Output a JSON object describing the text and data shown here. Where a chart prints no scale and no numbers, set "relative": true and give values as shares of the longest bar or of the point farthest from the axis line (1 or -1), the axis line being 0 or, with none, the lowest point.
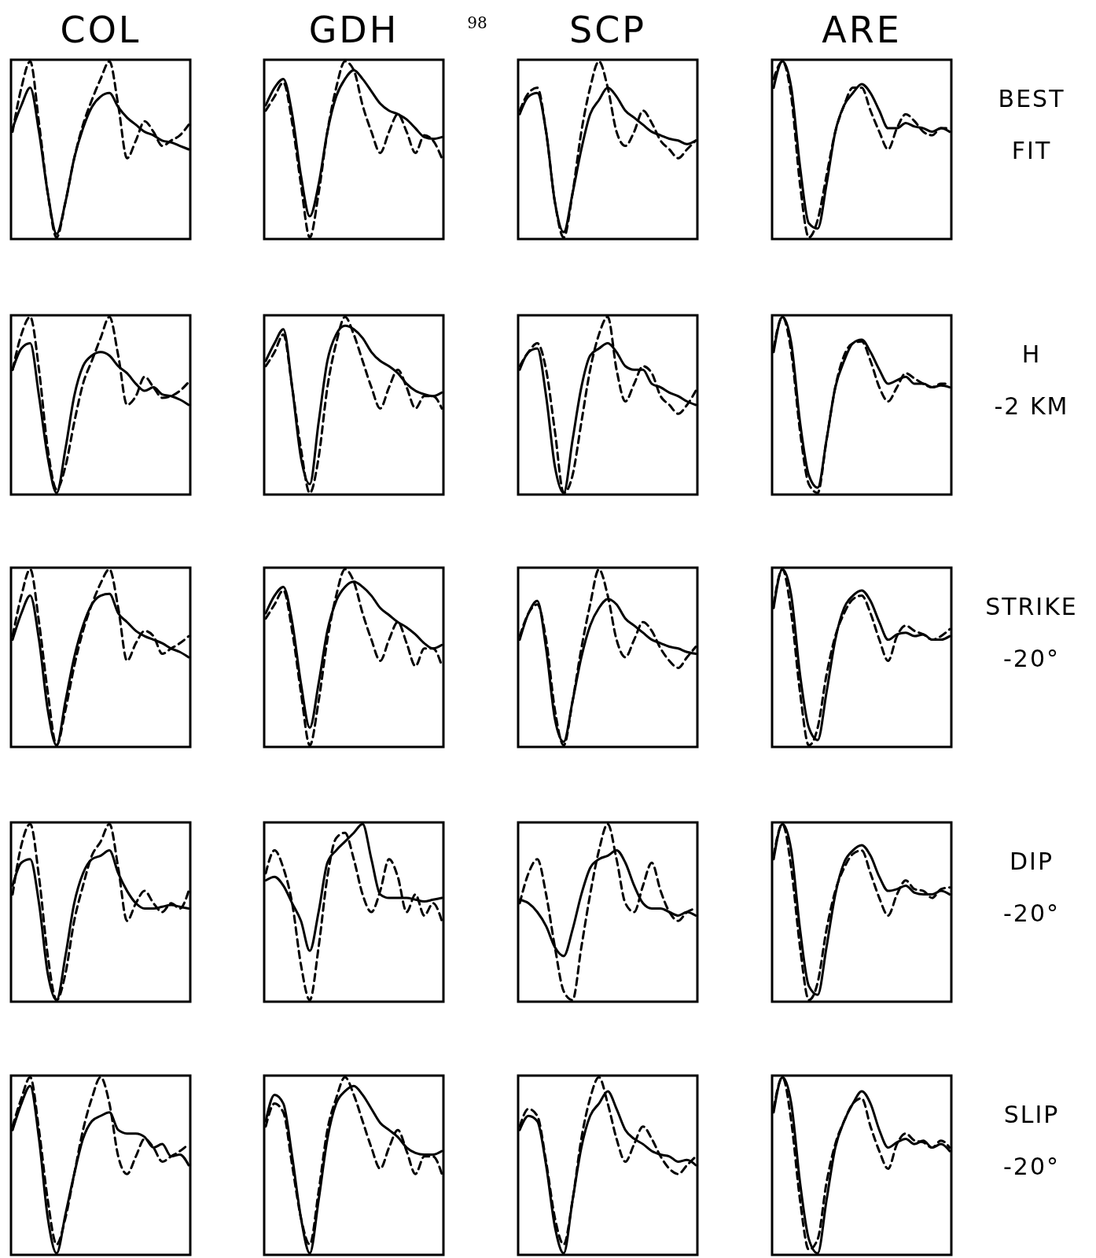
{
  "chart_data": [
    {
      "type": "line",
      "relative": true,
      "title": "COL",
      "categories": [
        null,
        null,
        null,
        null,
        null,
        null,
        null,
        null,
        null,
        null,
        null,
        null,
        null,
        null,
        null,
        null,
        null,
        null,
        null,
        null,
        null
      ],
      "series": [
        {
          "color": "#000000",
          "line_style": "solid",
          "values": [
            0.62,
            0.75,
            0.85,
            0.6,
            0.25,
            0.02,
            0.2,
            0.45,
            0.62,
            0.74,
            0.8,
            0.82,
            0.74,
            0.68,
            0.64,
            0.6,
            0.58,
            0.55,
            0.54,
            0.52,
            0.5
          ]
        },
        {
          "color": "#000000",
          "line_style": "dashed",
          "values": [
            0.6,
            0.85,
            1,
            0.65,
            0.25,
            0.0,
            0.2,
            0.45,
            0.64,
            0.78,
            0.9,
            1,
            0.75,
            0.45,
            0.55,
            0.66,
            0.6,
            0.52,
            0.55,
            0.58,
            0.64
          ]
        }
      ]
    },
    {
      "type": "line",
      "relative": true,
      "title": "GDH",
      "annotations": [
        "98"
      ],
      "categories": [
        null,
        null,
        null,
        null,
        null,
        null,
        null,
        null,
        null,
        null,
        null,
        null,
        null,
        null,
        null,
        null,
        null,
        null,
        null,
        null,
        null
      ],
      "series": [
        {
          "color": "#000000",
          "line_style": "solid",
          "values": [
            0.75,
            0.85,
            0.9,
            0.7,
            0.35,
            0.12,
            0.3,
            0.6,
            0.8,
            0.9,
            0.95,
            0.9,
            0.83,
            0.76,
            0.72,
            0.7,
            0.67,
            0.62,
            0.57,
            0.56,
            0.57
          ]
        },
        {
          "color": "#000000",
          "line_style": "dashed",
          "values": [
            0.72,
            0.8,
            0.88,
            0.65,
            0.3,
            0.0,
            0.25,
            0.6,
            0.85,
            1,
            0.95,
            0.75,
            0.6,
            0.48,
            0.6,
            0.7,
            0.6,
            0.48,
            0.58,
            0.55,
            0.45
          ]
        }
      ]
    },
    {
      "type": "line",
      "relative": true,
      "title": "SCP",
      "categories": [
        null,
        null,
        null,
        null,
        null,
        null,
        null,
        null,
        null,
        null,
        null,
        null,
        null,
        null,
        null,
        null,
        null,
        null,
        null,
        null,
        null
      ],
      "series": [
        {
          "color": "#000000",
          "line_style": "solid",
          "values": [
            0.7,
            0.8,
            0.82,
            0.6,
            0.2,
            0.03,
            0.25,
            0.5,
            0.7,
            0.78,
            0.85,
            0.8,
            0.72,
            0.68,
            0.64,
            0.6,
            0.58,
            0.56,
            0.55,
            0.53,
            0.55
          ]
        },
        {
          "color": "#000000",
          "line_style": "dashed",
          "values": [
            0.72,
            0.82,
            0.85,
            0.6,
            0.2,
            0.0,
            0.25,
            0.6,
            0.85,
            1,
            0.85,
            0.6,
            0.52,
            0.6,
            0.72,
            0.65,
            0.55,
            0.5,
            0.45,
            0.5,
            0.55
          ]
        }
      ]
    },
    {
      "type": "line",
      "relative": true,
      "title": "ARE",
      "annotations": [
        "BEST",
        "FIT"
      ],
      "categories": [
        null,
        null,
        null,
        null,
        null,
        null,
        null,
        null,
        null,
        null,
        null,
        null,
        null,
        null,
        null,
        null,
        null,
        null,
        null,
        null,
        null
      ],
      "series": [
        {
          "color": "#000000",
          "line_style": "solid",
          "values": [
            0.85,
            1,
            0.85,
            0.4,
            0.08,
            0.05,
            0.3,
            0.6,
            0.75,
            0.82,
            0.87,
            0.82,
            0.72,
            0.62,
            0.62,
            0.65,
            0.63,
            0.62,
            0.6,
            0.62,
            0.6
          ]
        },
        {
          "color": "#000000",
          "line_style": "dashed",
          "values": [
            0.9,
            1,
            0.8,
            0.3,
            0.0,
            0.1,
            0.35,
            0.6,
            0.75,
            0.85,
            0.85,
            0.72,
            0.6,
            0.5,
            0.62,
            0.7,
            0.66,
            0.6,
            0.58,
            0.62,
            0.62
          ]
        }
      ]
    },
    {
      "type": "line",
      "relative": true,
      "categories": [
        null,
        null,
        null,
        null,
        null,
        null,
        null,
        null,
        null,
        null,
        null,
        null,
        null,
        null,
        null,
        null,
        null,
        null,
        null,
        null,
        null
      ],
      "series": [
        {
          "color": "#000000",
          "line_style": "solid",
          "values": [
            0.7,
            0.82,
            0.85,
            0.55,
            0.2,
            0.0,
            0.25,
            0.55,
            0.72,
            0.78,
            0.8,
            0.78,
            0.72,
            0.68,
            0.62,
            0.58,
            0.6,
            0.56,
            0.55,
            0.53,
            0.5
          ]
        },
        {
          "color": "#000000",
          "line_style": "dashed",
          "values": [
            0.7,
            0.9,
            1,
            0.7,
            0.25,
            0.02,
            0.15,
            0.4,
            0.62,
            0.75,
            0.88,
            1,
            0.78,
            0.5,
            0.55,
            0.66,
            0.6,
            0.54,
            0.55,
            0.58,
            0.63
          ]
        }
      ]
    },
    {
      "type": "line",
      "relative": true,
      "categories": [
        null,
        null,
        null,
        null,
        null,
        null,
        null,
        null,
        null,
        null,
        null,
        null,
        null,
        null,
        null,
        null,
        null,
        null,
        null,
        null,
        null
      ],
      "series": [
        {
          "color": "#000000",
          "line_style": "solid",
          "values": [
            0.75,
            0.85,
            0.93,
            0.6,
            0.2,
            0.05,
            0.4,
            0.75,
            0.9,
            0.95,
            0.93,
            0.88,
            0.8,
            0.75,
            0.72,
            0.68,
            0.62,
            0.58,
            0.56,
            0.55,
            0.57
          ]
        },
        {
          "color": "#000000",
          "line_style": "dashed",
          "values": [
            0.72,
            0.8,
            0.9,
            0.6,
            0.25,
            0.0,
            0.2,
            0.6,
            0.85,
            1,
            0.9,
            0.75,
            0.6,
            0.48,
            0.6,
            0.7,
            0.6,
            0.48,
            0.55,
            0.55,
            0.48
          ]
        }
      ]
    },
    {
      "type": "line",
      "relative": true,
      "categories": [
        null,
        null,
        null,
        null,
        null,
        null,
        null,
        null,
        null,
        null,
        null,
        null,
        null,
        null,
        null,
        null,
        null,
        null,
        null,
        null,
        null
      ],
      "series": [
        {
          "color": "#000000",
          "line_style": "solid",
          "values": [
            0.7,
            0.8,
            0.82,
            0.55,
            0.15,
            0.0,
            0.3,
            0.6,
            0.78,
            0.82,
            0.85,
            0.8,
            0.72,
            0.7,
            0.7,
            0.62,
            0.6,
            0.57,
            0.55,
            0.52,
            0.5
          ]
        },
        {
          "color": "#000000",
          "line_style": "dashed",
          "values": [
            0.72,
            0.8,
            0.85,
            0.7,
            0.35,
            0.0,
            0.1,
            0.4,
            0.7,
            0.9,
            1,
            0.7,
            0.52,
            0.62,
            0.72,
            0.68,
            0.55,
            0.5,
            0.45,
            0.5,
            0.58
          ]
        }
      ]
    },
    {
      "type": "line",
      "relative": true,
      "annotations": [
        "H",
        "-2 KM"
      ],
      "categories": [
        null,
        null,
        null,
        null,
        null,
        null,
        null,
        null,
        null,
        null,
        null,
        null,
        null,
        null,
        null,
        null,
        null,
        null,
        null,
        null,
        null
      ],
      "series": [
        {
          "color": "#000000",
          "line_style": "solid",
          "values": [
            0.8,
            1,
            0.85,
            0.4,
            0.1,
            0.03,
            0.3,
            0.6,
            0.75,
            0.85,
            0.87,
            0.8,
            0.7,
            0.62,
            0.64,
            0.66,
            0.62,
            0.62,
            0.6,
            0.61,
            0.6
          ]
        },
        {
          "color": "#000000",
          "line_style": "dashed",
          "values": [
            0.82,
            1,
            0.8,
            0.35,
            0.05,
            0.0,
            0.3,
            0.6,
            0.78,
            0.85,
            0.86,
            0.75,
            0.6,
            0.52,
            0.6,
            0.68,
            0.65,
            0.62,
            0.6,
            0.62,
            0.62
          ]
        }
      ]
    },
    {
      "type": "line",
      "relative": true,
      "categories": [
        null,
        null,
        null,
        null,
        null,
        null,
        null,
        null,
        null,
        null,
        null,
        null,
        null,
        null,
        null,
        null,
        null,
        null,
        null,
        null,
        null
      ],
      "series": [
        {
          "color": "#000000",
          "line_style": "solid",
          "values": [
            0.6,
            0.75,
            0.85,
            0.6,
            0.2,
            0.0,
            0.25,
            0.5,
            0.68,
            0.8,
            0.85,
            0.86,
            0.75,
            0.7,
            0.65,
            0.62,
            0.6,
            0.58,
            0.55,
            0.53,
            0.5
          ]
        },
        {
          "color": "#000000",
          "line_style": "dashed",
          "values": [
            0.62,
            0.85,
            1,
            0.7,
            0.3,
            0.0,
            0.2,
            0.45,
            0.65,
            0.8,
            0.92,
            1,
            0.78,
            0.48,
            0.58,
            0.65,
            0.62,
            0.52,
            0.55,
            0.58,
            0.62
          ]
        }
      ]
    },
    {
      "type": "line",
      "relative": true,
      "categories": [
        null,
        null,
        null,
        null,
        null,
        null,
        null,
        null,
        null,
        null,
        null,
        null,
        null,
        null,
        null,
        null,
        null,
        null,
        null,
        null,
        null
      ],
      "series": [
        {
          "color": "#000000",
          "line_style": "solid",
          "values": [
            0.75,
            0.85,
            0.9,
            0.7,
            0.35,
            0.1,
            0.35,
            0.65,
            0.82,
            0.9,
            0.93,
            0.9,
            0.85,
            0.78,
            0.74,
            0.7,
            0.67,
            0.63,
            0.58,
            0.55,
            0.57
          ]
        },
        {
          "color": "#000000",
          "line_style": "dashed",
          "values": [
            0.72,
            0.8,
            0.88,
            0.65,
            0.3,
            0.0,
            0.25,
            0.6,
            0.85,
            1,
            0.93,
            0.75,
            0.6,
            0.48,
            0.6,
            0.7,
            0.58,
            0.45,
            0.55,
            0.55,
            0.45
          ]
        }
      ]
    },
    {
      "type": "line",
      "relative": true,
      "categories": [
        null,
        null,
        null,
        null,
        null,
        null,
        null,
        null,
        null,
        null,
        null,
        null,
        null,
        null,
        null,
        null,
        null,
        null,
        null,
        null,
        null
      ],
      "series": [
        {
          "color": "#000000",
          "line_style": "solid",
          "values": [
            0.6,
            0.75,
            0.82,
            0.55,
            0.15,
            0.02,
            0.25,
            0.5,
            0.68,
            0.78,
            0.83,
            0.8,
            0.72,
            0.68,
            0.64,
            0.6,
            0.58,
            0.56,
            0.55,
            0.53,
            0.52
          ]
        },
        {
          "color": "#000000",
          "line_style": "dashed",
          "values": [
            0.62,
            0.75,
            0.8,
            0.6,
            0.2,
            0.0,
            0.25,
            0.55,
            0.8,
            1,
            0.85,
            0.6,
            0.5,
            0.6,
            0.7,
            0.65,
            0.55,
            0.48,
            0.44,
            0.5,
            0.56
          ]
        }
      ]
    },
    {
      "type": "line",
      "relative": true,
      "annotations": [
        "STRIKE",
        "-20°"
      ],
      "categories": [
        null,
        null,
        null,
        null,
        null,
        null,
        null,
        null,
        null,
        null,
        null,
        null,
        null,
        null,
        null,
        null,
        null,
        null,
        null,
        null,
        null
      ],
      "series": [
        {
          "color": "#000000",
          "line_style": "solid",
          "values": [
            0.78,
            1,
            0.85,
            0.4,
            0.1,
            0.03,
            0.3,
            0.6,
            0.78,
            0.85,
            0.88,
            0.82,
            0.7,
            0.6,
            0.63,
            0.64,
            0.62,
            0.63,
            0.6,
            0.6,
            0.62
          ]
        },
        {
          "color": "#000000",
          "line_style": "dashed",
          "values": [
            0.8,
            1,
            0.75,
            0.3,
            0.0,
            0.1,
            0.4,
            0.62,
            0.75,
            0.83,
            0.85,
            0.75,
            0.6,
            0.48,
            0.62,
            0.68,
            0.65,
            0.63,
            0.6,
            0.62,
            0.66
          ]
        }
      ]
    },
    {
      "type": "line",
      "relative": true,
      "categories": [
        null,
        null,
        null,
        null,
        null,
        null,
        null,
        null,
        null,
        null,
        null,
        null,
        null,
        null,
        null,
        null,
        null,
        null,
        null,
        null,
        null
      ],
      "series": [
        {
          "color": "#000000",
          "line_style": "solid",
          "values": [
            0.65,
            0.78,
            0.8,
            0.55,
            0.15,
            0.0,
            0.25,
            0.55,
            0.72,
            0.8,
            0.82,
            0.85,
            0.72,
            0.62,
            0.55,
            0.52,
            0.52,
            0.53,
            0.54,
            0.53,
            0.52
          ]
        },
        {
          "color": "#000000",
          "line_style": "dashed",
          "values": [
            0.6,
            0.88,
            1,
            0.7,
            0.25,
            0.0,
            0.15,
            0.45,
            0.65,
            0.82,
            0.9,
            1,
            0.75,
            0.45,
            0.55,
            0.62,
            0.55,
            0.5,
            0.55,
            0.52,
            0.62
          ]
        }
      ]
    },
    {
      "type": "line",
      "relative": true,
      "categories": [
        null,
        null,
        null,
        null,
        null,
        null,
        null,
        null,
        null,
        null,
        null,
        null,
        null,
        null,
        null,
        null,
        null,
        null,
        null,
        null,
        null
      ],
      "series": [
        {
          "color": "#000000",
          "line_style": "solid",
          "values": [
            0.68,
            0.7,
            0.65,
            0.55,
            0.45,
            0.28,
            0.5,
            0.78,
            0.85,
            0.9,
            0.95,
            1,
            0.8,
            0.6,
            0.58,
            0.58,
            0.58,
            0.57,
            0.56,
            0.57,
            0.58
          ]
        },
        {
          "color": "#000000",
          "line_style": "dashed",
          "values": [
            0.72,
            0.85,
            0.75,
            0.55,
            0.2,
            0.0,
            0.3,
            0.7,
            0.92,
            0.95,
            0.8,
            0.6,
            0.5,
            0.62,
            0.8,
            0.7,
            0.5,
            0.6,
            0.48,
            0.55,
            0.45
          ]
        }
      ]
    },
    {
      "type": "line",
      "relative": true,
      "categories": [
        null,
        null,
        null,
        null,
        null,
        null,
        null,
        null,
        null,
        null,
        null,
        null,
        null,
        null,
        null,
        null,
        null,
        null,
        null,
        null,
        null
      ],
      "series": [
        {
          "color": "#000000",
          "line_style": "solid",
          "values": [
            0.57,
            0.55,
            0.5,
            0.42,
            0.3,
            0.25,
            0.4,
            0.6,
            0.75,
            0.8,
            0.82,
            0.85,
            0.78,
            0.65,
            0.55,
            0.52,
            0.52,
            0.5,
            0.48,
            0.5,
            0.48
          ]
        },
        {
          "color": "#000000",
          "line_style": "dashed",
          "values": [
            0.55,
            0.72,
            0.8,
            0.6,
            0.3,
            0.05,
            0.0,
            0.3,
            0.6,
            0.85,
            1,
            0.8,
            0.55,
            0.5,
            0.65,
            0.78,
            0.62,
            0.5,
            0.45,
            0.5,
            0.52
          ]
        }
      ]
    },
    {
      "type": "line",
      "relative": true,
      "annotations": [
        "DIP",
        "-20°"
      ],
      "categories": [
        null,
        null,
        null,
        null,
        null,
        null,
        null,
        null,
        null,
        null,
        null,
        null,
        null,
        null,
        null,
        null,
        null,
        null,
        null,
        null,
        null
      ],
      "series": [
        {
          "color": "#000000",
          "line_style": "solid",
          "values": [
            0.8,
            1,
            0.85,
            0.4,
            0.08,
            0.03,
            0.3,
            0.6,
            0.78,
            0.85,
            0.88,
            0.82,
            0.7,
            0.62,
            0.63,
            0.65,
            0.61,
            0.6,
            0.6,
            0.62,
            0.6
          ]
        },
        {
          "color": "#000000",
          "line_style": "dashed",
          "values": [
            0.82,
            1,
            0.75,
            0.3,
            0.0,
            0.1,
            0.4,
            0.62,
            0.75,
            0.83,
            0.85,
            0.72,
            0.58,
            0.48,
            0.6,
            0.68,
            0.63,
            0.62,
            0.58,
            0.63,
            0.64
          ]
        }
      ]
    },
    {
      "type": "line",
      "relative": true,
      "categories": [
        null,
        null,
        null,
        null,
        null,
        null,
        null,
        null,
        null,
        null,
        null,
        null,
        null,
        null,
        null,
        null,
        null,
        null,
        null,
        null,
        null
      ],
      "series": [
        {
          "color": "#000000",
          "line_style": "solid",
          "values": [
            0.7,
            0.85,
            0.95,
            0.65,
            0.2,
            0.0,
            0.22,
            0.45,
            0.65,
            0.75,
            0.78,
            0.8,
            0.7,
            0.68,
            0.68,
            0.66,
            0.6,
            0.62,
            0.55,
            0.56,
            0.5
          ]
        },
        {
          "color": "#000000",
          "line_style": "dashed",
          "values": [
            0.72,
            0.88,
            1,
            0.7,
            0.3,
            0.05,
            0.2,
            0.45,
            0.7,
            0.88,
            1,
            0.85,
            0.55,
            0.45,
            0.55,
            0.65,
            0.6,
            0.52,
            0.55,
            0.58,
            0.62
          ]
        }
      ]
    },
    {
      "type": "line",
      "relative": true,
      "categories": [
        null,
        null,
        null,
        null,
        null,
        null,
        null,
        null,
        null,
        null,
        null,
        null,
        null,
        null,
        null,
        null,
        null,
        null,
        null,
        null,
        null
      ],
      "series": [
        {
          "color": "#000000",
          "line_style": "solid",
          "values": [
            0.75,
            0.9,
            0.85,
            0.55,
            0.2,
            0.0,
            0.3,
            0.65,
            0.85,
            0.92,
            0.95,
            0.9,
            0.82,
            0.74,
            0.7,
            0.66,
            0.6,
            0.57,
            0.56,
            0.56,
            0.58
          ]
        },
        {
          "color": "#000000",
          "line_style": "dashed",
          "values": [
            0.72,
            0.85,
            0.8,
            0.5,
            0.2,
            0.05,
            0.35,
            0.7,
            0.88,
            1,
            0.9,
            0.75,
            0.6,
            0.48,
            0.6,
            0.7,
            0.58,
            0.45,
            0.55,
            0.55,
            0.45
          ]
        }
      ]
    },
    {
      "type": "line",
      "relative": true,
      "categories": [
        null,
        null,
        null,
        null,
        null,
        null,
        null,
        null,
        null,
        null,
        null,
        null,
        null,
        null,
        null,
        null,
        null,
        null,
        null,
        null,
        null
      ],
      "series": [
        {
          "color": "#000000",
          "line_style": "solid",
          "values": [
            0.7,
            0.78,
            0.75,
            0.5,
            0.15,
            0.0,
            0.3,
            0.6,
            0.78,
            0.85,
            0.92,
            0.82,
            0.7,
            0.65,
            0.62,
            0.58,
            0.56,
            0.55,
            0.52,
            0.53,
            0.5
          ]
        },
        {
          "color": "#000000",
          "line_style": "dashed",
          "values": [
            0.72,
            0.82,
            0.78,
            0.52,
            0.2,
            0.05,
            0.3,
            0.65,
            0.88,
            1,
            0.85,
            0.65,
            0.52,
            0.62,
            0.72,
            0.65,
            0.55,
            0.48,
            0.45,
            0.5,
            0.55
          ]
        }
      ]
    },
    {
      "type": "line",
      "relative": true,
      "annotations": [
        "SLIP",
        "-20°"
      ],
      "categories": [
        null,
        null,
        null,
        null,
        null,
        null,
        null,
        null,
        null,
        null,
        null,
        null,
        null,
        null,
        null,
        null,
        null,
        null,
        null,
        null,
        null
      ],
      "series": [
        {
          "color": "#000000",
          "line_style": "solid",
          "values": [
            0.8,
            1,
            0.85,
            0.4,
            0.08,
            0.0,
            0.3,
            0.6,
            0.75,
            0.85,
            0.92,
            0.85,
            0.7,
            0.6,
            0.63,
            0.65,
            0.62,
            0.64,
            0.6,
            0.62,
            0.58
          ]
        },
        {
          "color": "#000000",
          "line_style": "dashed",
          "values": [
            0.82,
            1,
            0.75,
            0.3,
            0.02,
            0.08,
            0.4,
            0.62,
            0.75,
            0.85,
            0.88,
            0.72,
            0.58,
            0.48,
            0.62,
            0.68,
            0.64,
            0.63,
            0.6,
            0.64,
            0.6
          ]
        }
      ]
    }
  ]
}
